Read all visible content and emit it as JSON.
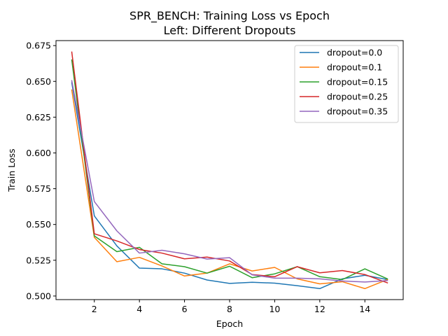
{
  "chart_data": {
    "type": "line",
    "title_line1": "SPR_BENCH: Training Loss vs Epoch",
    "title_line2": "Left: Different Dropouts",
    "xlabel": "Epoch",
    "ylabel": "Train Loss",
    "xlim": [
      0.3,
      15.7
    ],
    "ylim": [
      0.4975,
      0.6785
    ],
    "xticks": [
      2,
      4,
      6,
      8,
      10,
      12,
      14
    ],
    "yticks": [
      0.5,
      0.525,
      0.55,
      0.575,
      0.6,
      0.625,
      0.65,
      0.675
    ],
    "grid": false,
    "legend_position": "upper-right",
    "x": [
      1,
      2,
      3,
      4,
      5,
      6,
      7,
      8,
      9,
      10,
      11,
      12,
      13,
      14,
      15
    ],
    "series": [
      {
        "name": "dropout=0.0",
        "color": "#1f77b4",
        "values": [
          0.649,
          0.556,
          0.535,
          0.5195,
          0.519,
          0.516,
          0.5112,
          0.5088,
          0.5096,
          0.509,
          0.5072,
          0.5052,
          0.512,
          0.5145,
          0.5115
        ]
      },
      {
        "name": "dropout=0.1",
        "color": "#ff7f0e",
        "values": [
          0.644,
          0.541,
          0.524,
          0.527,
          0.521,
          0.514,
          0.516,
          0.5225,
          0.5175,
          0.52,
          0.512,
          0.5085,
          0.51,
          0.5052,
          0.5115
        ]
      },
      {
        "name": "dropout=0.15",
        "color": "#2ca02c",
        "values": [
          0.665,
          0.542,
          0.531,
          0.534,
          0.5225,
          0.5205,
          0.516,
          0.5208,
          0.5128,
          0.5155,
          0.5205,
          0.5135,
          0.5115,
          0.519,
          0.512
        ]
      },
      {
        "name": "dropout=0.25",
        "color": "#d62728",
        "values": [
          0.6705,
          0.5435,
          0.5385,
          0.5325,
          0.53,
          0.526,
          0.5272,
          0.5245,
          0.515,
          0.5135,
          0.5205,
          0.5162,
          0.5178,
          0.515,
          0.5092
        ]
      },
      {
        "name": "dropout=0.35",
        "color": "#9467bd",
        "values": [
          0.6505,
          0.566,
          0.5455,
          0.53,
          0.532,
          0.5295,
          0.5258,
          0.5268,
          0.5148,
          0.5125,
          0.5125,
          0.512,
          0.5105,
          0.5098,
          0.5108
        ]
      }
    ]
  }
}
